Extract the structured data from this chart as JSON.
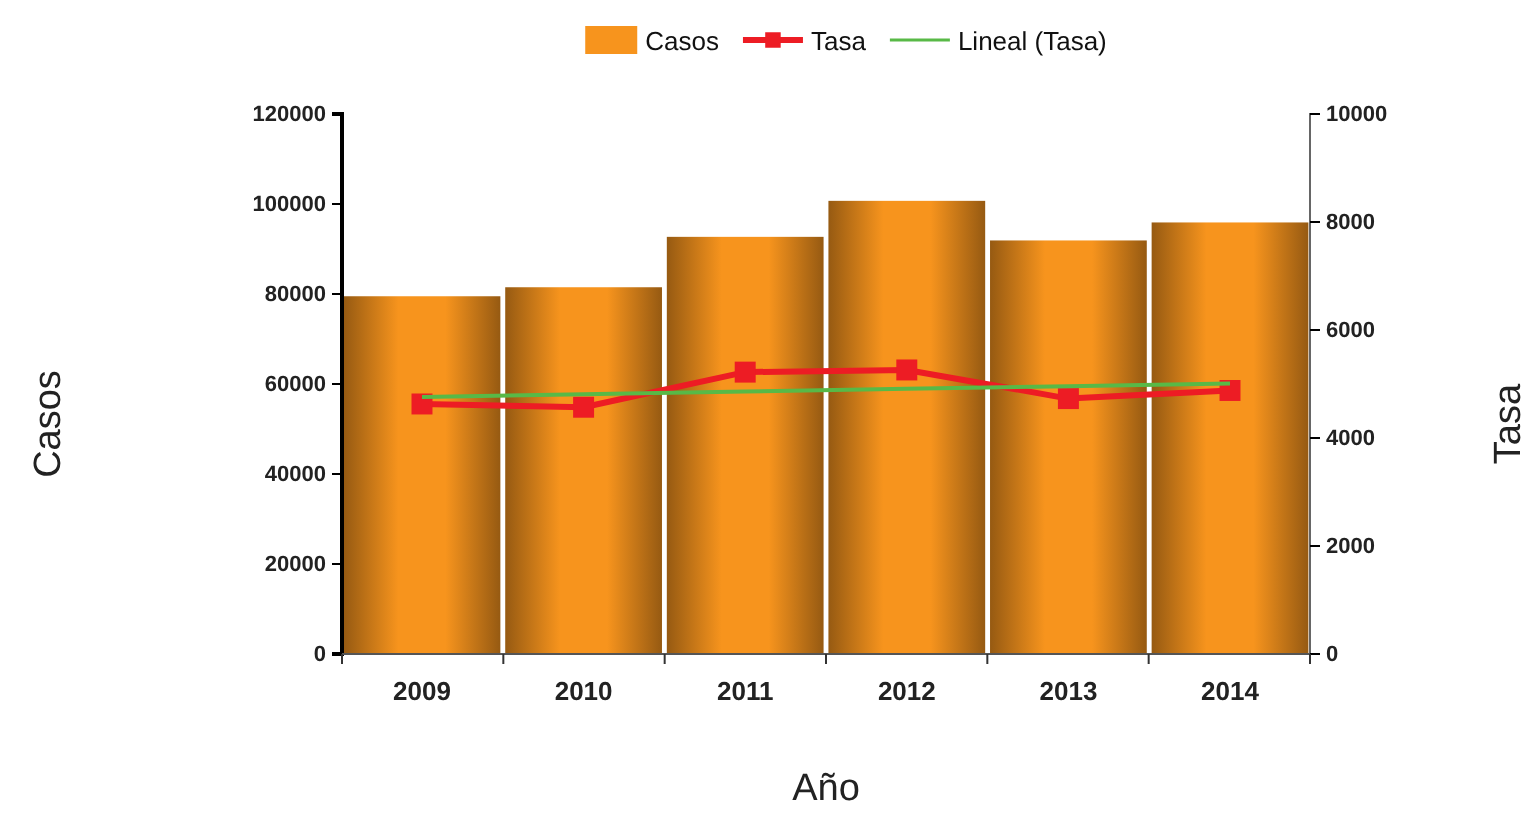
{
  "chart_data": {
    "type": "bar",
    "categories": [
      "2009",
      "2010",
      "2011",
      "2012",
      "2013",
      "2014"
    ],
    "xlabel": "Año",
    "ylabel": "Casos",
    "y2label": "Tasa",
    "ylim": [
      0,
      120000
    ],
    "yticks": [
      0,
      20000,
      40000,
      60000,
      80000,
      100000,
      120000
    ],
    "y2lim": [
      0,
      10000
    ],
    "y2ticks": [
      0,
      2000,
      4000,
      6000,
      8000,
      10000
    ],
    "legend": "top",
    "grid": false,
    "series": [
      {
        "name": "Casos",
        "color": "#f7941d",
        "values": [
          79500,
          81500,
          92700,
          100700,
          91900,
          95900
        ]
      },
      {
        "name": "Tasa",
        "type": "line",
        "axis": "y2",
        "color": "#ed1c24",
        "marker": "square",
        "values": [
          4630,
          4570,
          5220,
          5260,
          4730,
          4880
        ]
      },
      {
        "name": "Lineal (Tasa)",
        "type": "line",
        "axis": "y2",
        "color": "#58b947",
        "marker": "none",
        "values": [
          4760,
          4810,
          4860,
          4910,
          4960,
          5010
        ]
      }
    ]
  }
}
